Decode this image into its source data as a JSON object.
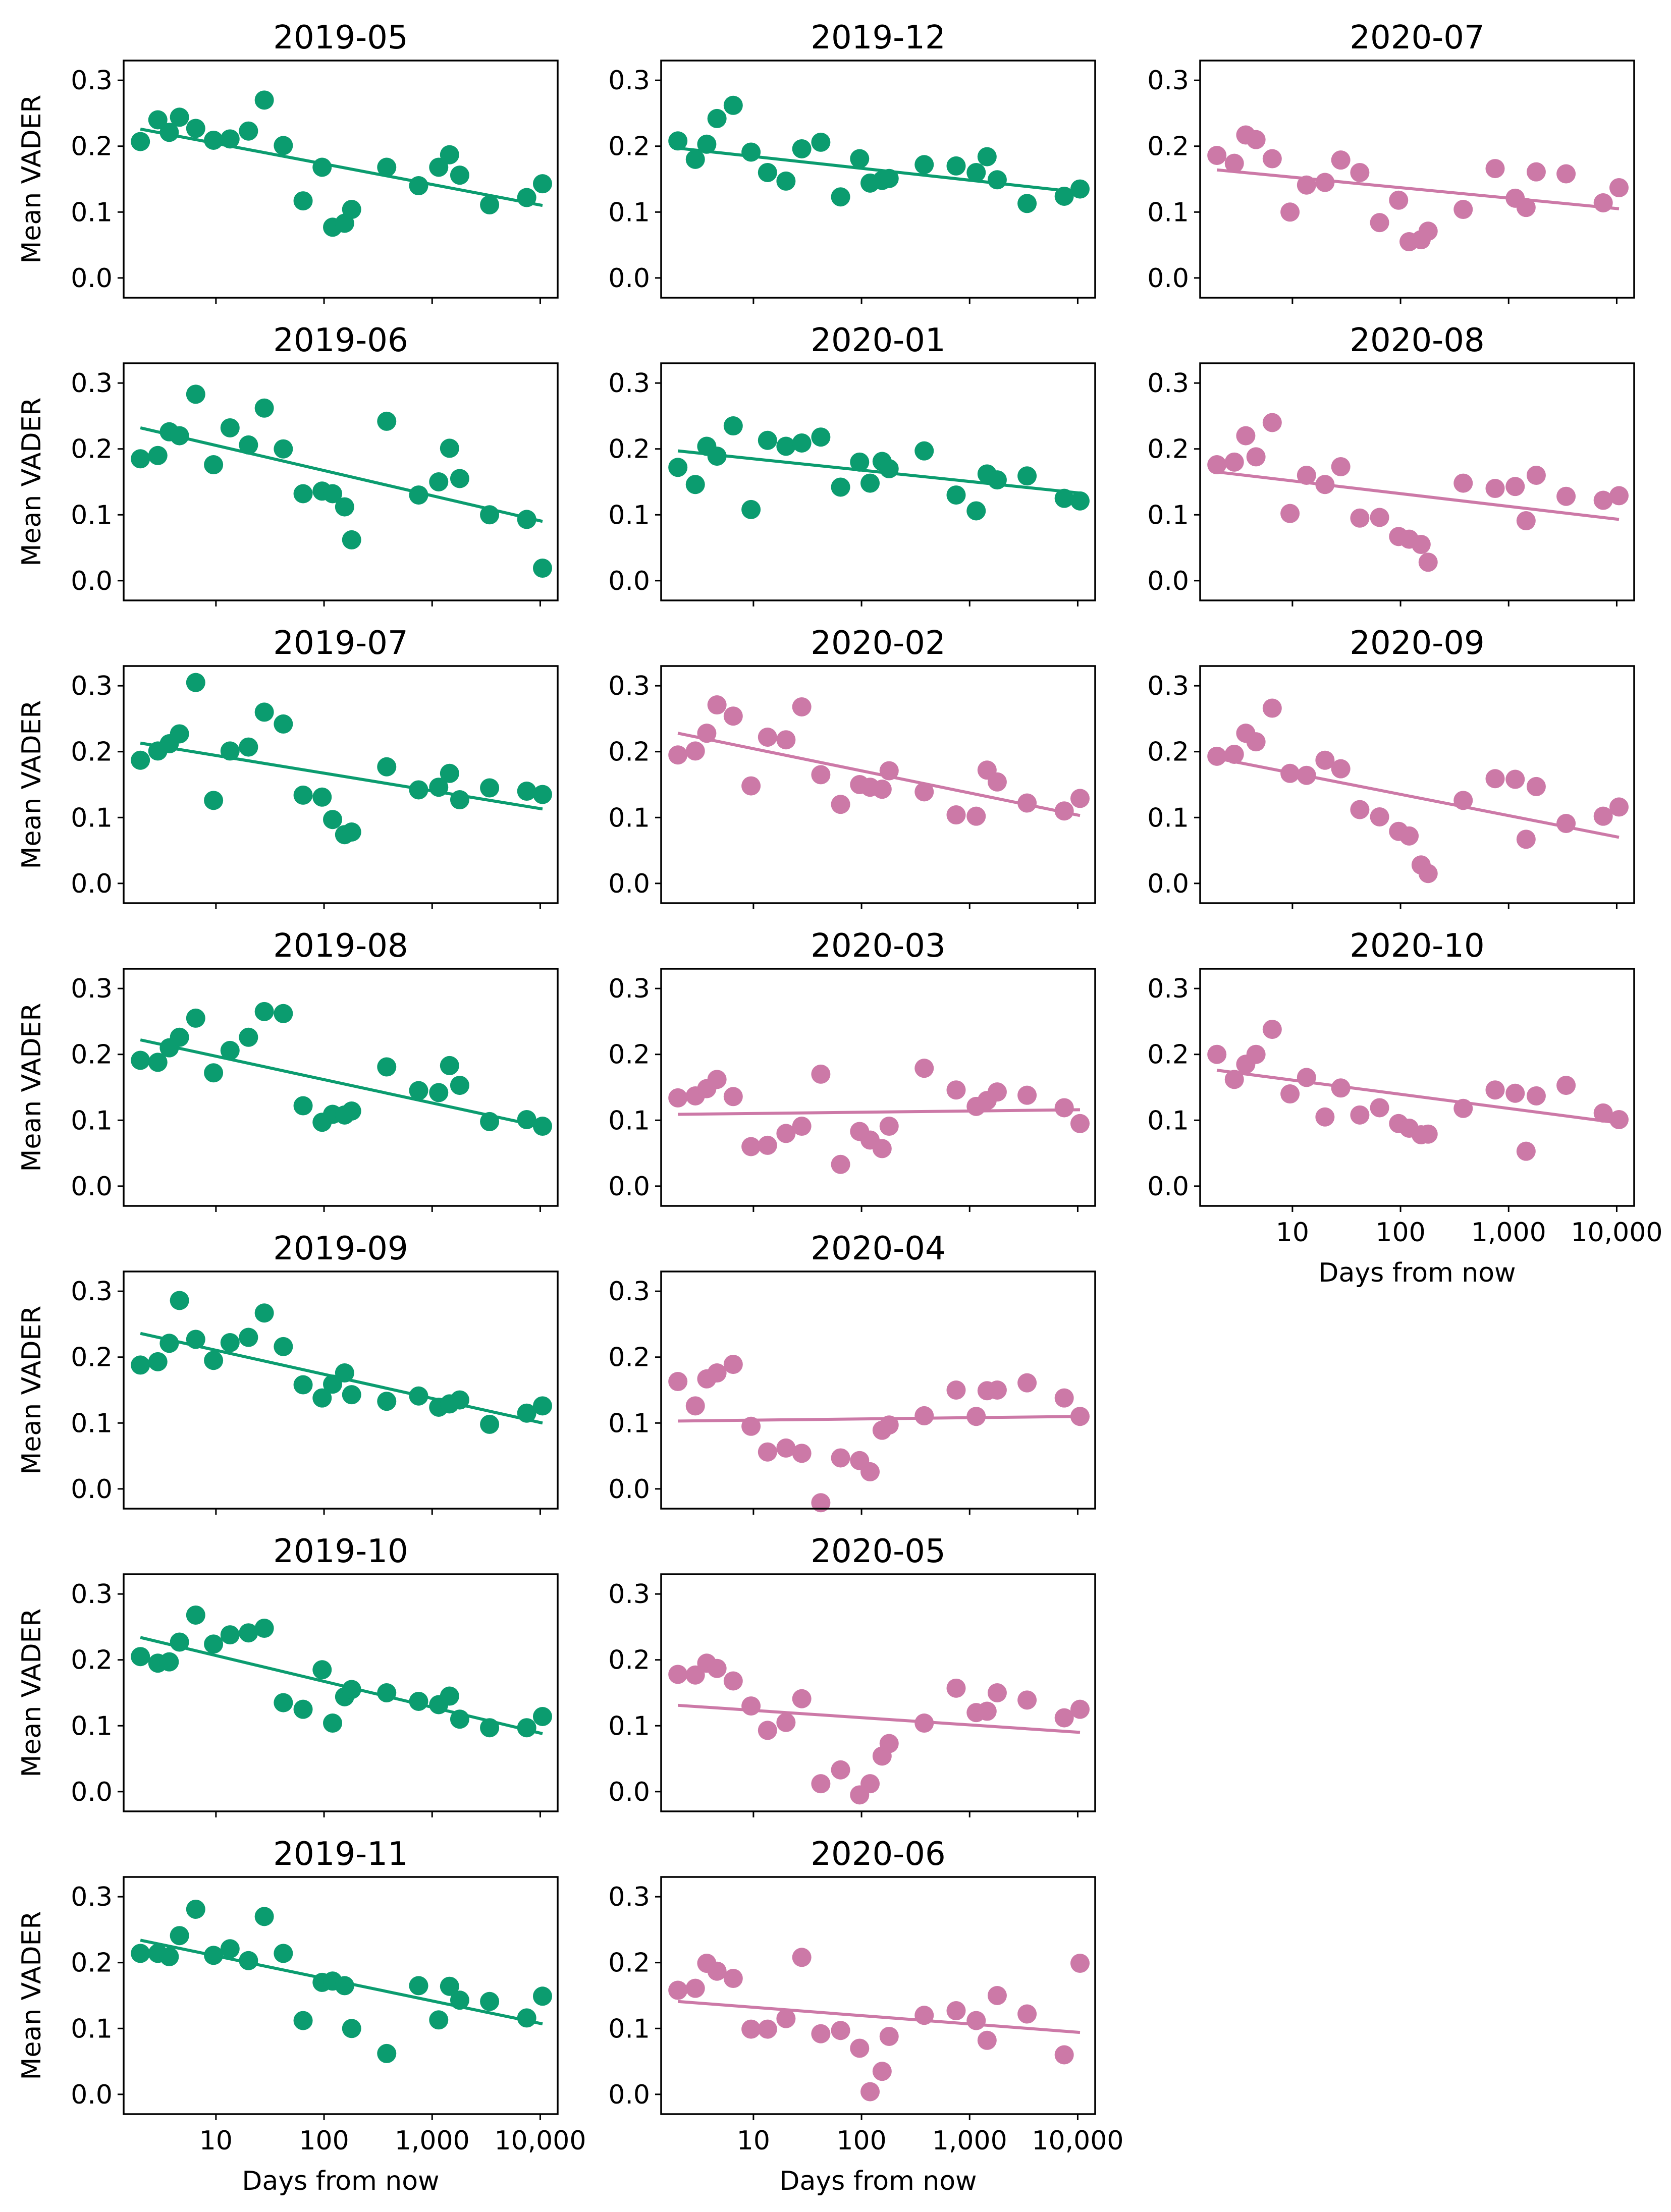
{
  "chart_data": {
    "type": "scatter",
    "xscale": "log",
    "xlim": [
      1.4,
      14500
    ],
    "ylim": [
      -0.03,
      0.33
    ],
    "y_ticks": [
      0.0,
      0.1,
      0.2,
      0.3
    ],
    "y_tick_labels": [
      "0.0",
      "0.1",
      "0.2",
      "0.3"
    ],
    "x_ticks": [
      10,
      100,
      1000,
      10000
    ],
    "x_tick_labels": [
      "10",
      "100",
      "1,000",
      "10,000"
    ],
    "x_days": [
      2,
      2.9,
      3.7,
      4.6,
      6.5,
      9.5,
      13.5,
      20,
      28,
      42,
      64,
      96,
      120,
      155,
      180,
      380,
      750,
      1150,
      1450,
      1800,
      3400,
      7500,
      10500
    ],
    "xlabel": "Days from now",
    "ylabel": "Mean VADER",
    "grid": false,
    "colors": {
      "green": "#0b9c6f",
      "pink": "#cc79a7"
    },
    "panels": [
      {
        "title": "2019-05",
        "col": 0,
        "row": 0,
        "color": "green",
        "trend": [
          0.226,
          0.11
        ],
        "y": [
          0.207,
          0.24,
          0.221,
          0.244,
          0.227,
          0.209,
          0.211,
          0.223,
          0.27,
          0.201,
          0.117,
          0.168,
          0.077,
          0.083,
          0.104,
          0.168,
          0.14,
          0.168,
          0.187,
          0.156,
          0.111,
          0.122,
          0.143
        ]
      },
      {
        "title": "2019-06",
        "col": 0,
        "row": 1,
        "color": "green",
        "trend": [
          0.232,
          0.09
        ],
        "y": [
          0.185,
          0.19,
          0.226,
          0.22,
          0.283,
          0.176,
          0.232,
          0.206,
          0.262,
          0.2,
          0.132,
          0.136,
          0.132,
          0.112,
          0.062,
          0.242,
          0.13,
          0.15,
          0.201,
          0.155,
          0.1,
          0.093,
          0.019
        ]
      },
      {
        "title": "2019-07",
        "col": 0,
        "row": 2,
        "color": "green",
        "trend": [
          0.213,
          0.113
        ],
        "y": [
          0.187,
          0.201,
          0.212,
          0.227,
          0.305,
          0.126,
          0.201,
          0.207,
          0.26,
          0.242,
          0.134,
          0.131,
          0.097,
          0.074,
          0.078,
          0.177,
          0.142,
          0.146,
          0.167,
          0.127,
          0.145,
          0.14,
          0.135
        ]
      },
      {
        "title": "2019-08",
        "col": 0,
        "row": 3,
        "color": "green",
        "trend": [
          0.222,
          0.09
        ],
        "y": [
          0.191,
          0.188,
          0.21,
          0.226,
          0.255,
          0.172,
          0.206,
          0.226,
          0.265,
          0.262,
          0.122,
          0.097,
          0.109,
          0.108,
          0.114,
          0.181,
          0.145,
          0.142,
          0.183,
          0.153,
          0.098,
          0.101,
          0.091
        ]
      },
      {
        "title": "2019-09",
        "col": 0,
        "row": 4,
        "color": "green",
        "trend": [
          0.236,
          0.1
        ],
        "y": [
          0.188,
          0.193,
          0.221,
          0.286,
          0.227,
          0.195,
          0.222,
          0.23,
          0.267,
          0.216,
          0.158,
          0.138,
          0.159,
          0.176,
          0.143,
          0.133,
          0.141,
          0.124,
          0.129,
          0.135,
          0.098,
          0.115,
          0.126
        ]
      },
      {
        "title": "2019-10",
        "col": 0,
        "row": 5,
        "color": "green",
        "trend": [
          0.234,
          0.088
        ],
        "y": [
          0.205,
          0.195,
          0.197,
          0.227,
          0.268,
          0.224,
          0.238,
          0.241,
          0.248,
          0.135,
          0.125,
          0.185,
          0.104,
          0.144,
          0.155,
          0.15,
          0.137,
          0.132,
          0.145,
          0.11,
          0.097,
          0.097,
          0.114
        ]
      },
      {
        "title": "2019-11",
        "col": 0,
        "row": 6,
        "color": "green",
        "trend": [
          0.234,
          0.107
        ],
        "y": [
          0.214,
          0.214,
          0.209,
          0.241,
          0.281,
          0.211,
          0.221,
          0.203,
          0.27,
          0.214,
          0.112,
          0.17,
          0.172,
          0.165,
          0.1,
          0.062,
          0.165,
          0.113,
          0.164,
          0.143,
          0.141,
          0.116,
          0.149
        ]
      },
      {
        "title": "2019-12",
        "col": 1,
        "row": 0,
        "color": "green",
        "trend": [
          0.197,
          0.13
        ],
        "y": [
          0.208,
          0.18,
          0.203,
          0.242,
          0.262,
          0.191,
          0.16,
          0.147,
          0.196,
          0.206,
          0.123,
          0.181,
          0.144,
          0.148,
          0.151,
          0.172,
          0.17,
          0.16,
          0.184,
          0.149,
          0.113,
          0.124,
          0.135
        ]
      },
      {
        "title": "2020-01",
        "col": 1,
        "row": 1,
        "color": "green",
        "trend": [
          0.197,
          0.133
        ],
        "y": [
          0.172,
          0.146,
          0.204,
          0.189,
          0.235,
          0.108,
          0.213,
          0.204,
          0.209,
          0.218,
          0.142,
          0.18,
          0.148,
          0.181,
          0.17,
          0.197,
          0.13,
          0.106,
          0.162,
          0.153,
          0.159,
          0.125,
          0.121
        ]
      },
      {
        "title": "2020-02",
        "col": 1,
        "row": 2,
        "color": "pink",
        "trend": [
          0.228,
          0.103
        ],
        "y": [
          0.195,
          0.201,
          0.228,
          0.271,
          0.254,
          0.148,
          0.222,
          0.218,
          0.268,
          0.165,
          0.12,
          0.15,
          0.146,
          0.143,
          0.171,
          0.139,
          0.104,
          0.102,
          0.172,
          0.154,
          0.122,
          0.11,
          0.129
        ]
      },
      {
        "title": "2020-03",
        "col": 1,
        "row": 3,
        "color": "pink",
        "trend": [
          0.109,
          0.116
        ],
        "y": [
          0.134,
          0.137,
          0.148,
          0.162,
          0.136,
          0.06,
          0.062,
          0.08,
          0.091,
          0.17,
          0.033,
          0.083,
          0.07,
          0.057,
          0.091,
          0.179,
          0.146,
          0.121,
          0.13,
          0.143,
          0.138,
          0.119,
          0.095
        ]
      },
      {
        "title": "2020-04",
        "col": 1,
        "row": 4,
        "color": "pink",
        "trend": [
          0.103,
          0.11
        ],
        "y": [
          0.163,
          0.126,
          0.167,
          0.176,
          0.189,
          0.095,
          0.056,
          0.062,
          0.054,
          -0.021,
          0.047,
          0.043,
          0.026,
          0.089,
          0.097,
          0.111,
          0.15,
          0.11,
          0.149,
          0.15,
          0.161,
          0.138,
          0.11
        ]
      },
      {
        "title": "2020-05",
        "col": 1,
        "row": 5,
        "color": "pink",
        "trend": [
          0.131,
          0.09
        ],
        "y": [
          0.178,
          0.177,
          0.195,
          0.187,
          0.168,
          0.13,
          0.093,
          0.105,
          0.141,
          0.012,
          0.033,
          -0.005,
          0.012,
          0.054,
          0.073,
          0.104,
          0.157,
          0.12,
          0.122,
          0.15,
          0.139,
          0.112,
          0.125
        ]
      },
      {
        "title": "2020-06",
        "col": 1,
        "row": 6,
        "color": "pink",
        "trend": [
          0.141,
          0.094
        ],
        "y": [
          0.158,
          0.161,
          0.199,
          0.187,
          0.176,
          0.099,
          0.099,
          0.115,
          0.208,
          0.092,
          0.097,
          0.07,
          0.004,
          0.035,
          0.088,
          0.12,
          0.127,
          0.112,
          0.082,
          0.15,
          0.122,
          0.06,
          0.199
        ]
      },
      {
        "title": "2020-07",
        "col": 2,
        "row": 0,
        "color": "pink",
        "trend": [
          0.164,
          0.105
        ],
        "y": [
          0.186,
          0.174,
          0.217,
          0.21,
          0.181,
          0.1,
          0.141,
          0.145,
          0.179,
          0.16,
          0.084,
          0.118,
          0.055,
          0.058,
          0.071,
          0.104,
          0.166,
          0.121,
          0.107,
          0.161,
          0.158,
          0.114,
          0.137
        ]
      },
      {
        "title": "2020-08",
        "col": 2,
        "row": 1,
        "color": "pink",
        "trend": [
          0.165,
          0.093
        ],
        "y": [
          0.176,
          0.18,
          0.22,
          0.188,
          0.24,
          0.102,
          0.16,
          0.146,
          0.173,
          0.095,
          0.096,
          0.067,
          0.063,
          0.055,
          0.028,
          0.148,
          0.14,
          0.143,
          0.091,
          0.16,
          0.128,
          0.122,
          0.129
        ]
      },
      {
        "title": "2020-09",
        "col": 2,
        "row": 2,
        "color": "pink",
        "trend": [
          0.19,
          0.07
        ],
        "y": [
          0.193,
          0.196,
          0.228,
          0.215,
          0.266,
          0.167,
          0.164,
          0.187,
          0.174,
          0.112,
          0.101,
          0.079,
          0.072,
          0.028,
          0.015,
          0.126,
          0.159,
          0.158,
          0.067,
          0.147,
          0.091,
          0.102,
          0.116
        ]
      },
      {
        "title": "2020-10",
        "col": 2,
        "row": 3,
        "color": "pink",
        "trend": [
          0.176,
          0.096
        ],
        "y": [
          0.2,
          0.162,
          0.185,
          0.2,
          0.238,
          0.14,
          0.165,
          0.105,
          0.149,
          0.108,
          0.119,
          0.095,
          0.088,
          0.078,
          0.079,
          0.118,
          0.146,
          0.141,
          0.053,
          0.137,
          0.153,
          0.111,
          0.101
        ]
      }
    ],
    "xlabel_panels": [
      "2019-11",
      "2020-06",
      "2020-10"
    ],
    "ylabel_panels": [
      "2019-05",
      "2019-06",
      "2019-07",
      "2019-08",
      "2019-09",
      "2019-10",
      "2019-11"
    ]
  }
}
